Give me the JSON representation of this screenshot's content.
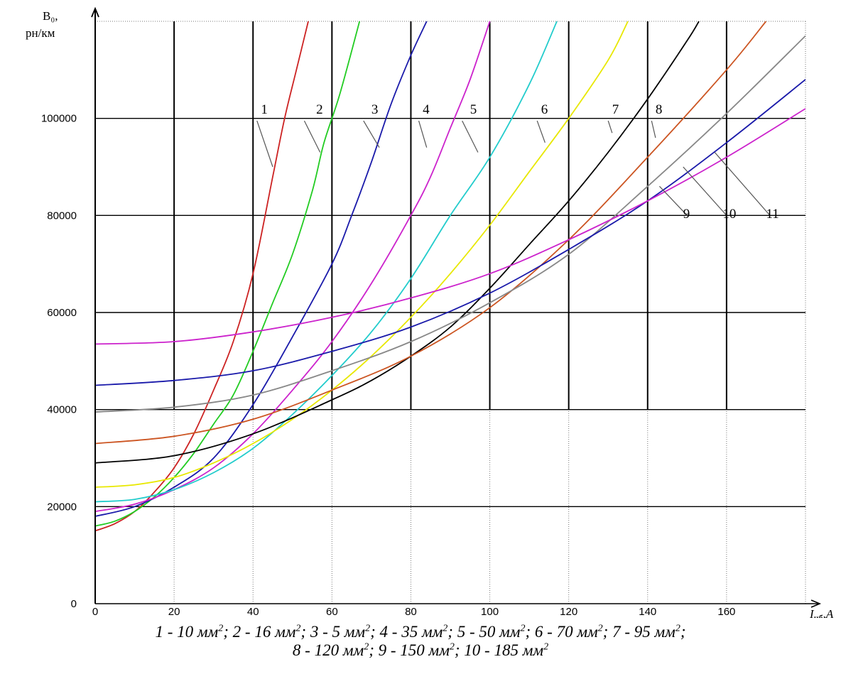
{
  "chart_data": {
    "type": "line",
    "title": "",
    "ylabel_lines": [
      "B₀,",
      "рн/км"
    ],
    "xlabel_main": "I",
    "xlabel_sub": "нб",
    "xlabel_unit": ",A",
    "xlim": [
      0,
      180
    ],
    "ylim": [
      0,
      120000
    ],
    "x_ticks": [
      0,
      20,
      40,
      60,
      80,
      100,
      120,
      140,
      160
    ],
    "y_ticks": [
      0,
      20000,
      40000,
      60000,
      80000,
      100000
    ],
    "grid": "on",
    "series": [
      {
        "label": "1",
        "color": "#cc2222",
        "points": [
          [
            0,
            15000
          ],
          [
            5,
            16500
          ],
          [
            10,
            19000
          ],
          [
            15,
            23000
          ],
          [
            20,
            28000
          ],
          [
            25,
            35000
          ],
          [
            30,
            44000
          ],
          [
            35,
            54000
          ],
          [
            40,
            68000
          ],
          [
            45,
            88000
          ],
          [
            48,
            100000
          ],
          [
            51,
            110000
          ],
          [
            54,
            120000
          ]
        ]
      },
      {
        "label": "2",
        "color": "#22cc22",
        "points": [
          [
            0,
            16000
          ],
          [
            5,
            17000
          ],
          [
            10,
            19000
          ],
          [
            15,
            22000
          ],
          [
            20,
            26000
          ],
          [
            25,
            31000
          ],
          [
            30,
            37000
          ],
          [
            35,
            43000
          ],
          [
            40,
            52000
          ],
          [
            45,
            62000
          ],
          [
            50,
            72000
          ],
          [
            55,
            85000
          ],
          [
            58,
            95000
          ],
          [
            62,
            105000
          ],
          [
            67,
            120000
          ]
        ]
      },
      {
        "label": "3",
        "color": "#1a1aaa",
        "points": [
          [
            0,
            18000
          ],
          [
            10,
            20000
          ],
          [
            20,
            24000
          ],
          [
            30,
            30000
          ],
          [
            40,
            41000
          ],
          [
            50,
            55000
          ],
          [
            60,
            70000
          ],
          [
            65,
            80000
          ],
          [
            70,
            91000
          ],
          [
            75,
            103000
          ],
          [
            80,
            113000
          ],
          [
            84,
            120000
          ]
        ]
      },
      {
        "label": "4",
        "color": "#cc22cc",
        "points": [
          [
            0,
            19000
          ],
          [
            10,
            20500
          ],
          [
            20,
            23500
          ],
          [
            30,
            28000
          ],
          [
            40,
            35000
          ],
          [
            50,
            44000
          ],
          [
            60,
            54000
          ],
          [
            70,
            66000
          ],
          [
            80,
            80000
          ],
          [
            85,
            88000
          ],
          [
            90,
            98000
          ],
          [
            95,
            108000
          ],
          [
            100,
            120000
          ]
        ]
      },
      {
        "label": "5",
        "color": "#22cccc",
        "points": [
          [
            0,
            21000
          ],
          [
            10,
            21500
          ],
          [
            20,
            23500
          ],
          [
            30,
            27000
          ],
          [
            40,
            32000
          ],
          [
            50,
            39000
          ],
          [
            60,
            47000
          ],
          [
            70,
            56000
          ],
          [
            80,
            67000
          ],
          [
            90,
            80000
          ],
          [
            100,
            92000
          ],
          [
            110,
            107000
          ],
          [
            117,
            120000
          ]
        ]
      },
      {
        "label": "6",
        "color": "#e8e800",
        "points": [
          [
            0,
            24000
          ],
          [
            10,
            24500
          ],
          [
            20,
            26000
          ],
          [
            30,
            29000
          ],
          [
            40,
            33000
          ],
          [
            50,
            38000
          ],
          [
            60,
            44000
          ],
          [
            70,
            51000
          ],
          [
            80,
            59000
          ],
          [
            90,
            68000
          ],
          [
            100,
            78000
          ],
          [
            110,
            89000
          ],
          [
            120,
            100000
          ],
          [
            130,
            112000
          ],
          [
            135,
            120000
          ]
        ]
      },
      {
        "label": "7",
        "color": "#000000",
        "points": [
          [
            0,
            29000
          ],
          [
            20,
            30500
          ],
          [
            40,
            35000
          ],
          [
            60,
            42000
          ],
          [
            70,
            46000
          ],
          [
            80,
            51000
          ],
          [
            90,
            57000
          ],
          [
            100,
            65000
          ],
          [
            110,
            74000
          ],
          [
            120,
            83000
          ],
          [
            130,
            93000
          ],
          [
            140,
            104000
          ],
          [
            150,
            116000
          ],
          [
            153,
            120000
          ]
        ]
      },
      {
        "label": "8",
        "color": "#cc5522",
        "points": [
          [
            0,
            33000
          ],
          [
            20,
            34500
          ],
          [
            40,
            38000
          ],
          [
            60,
            44000
          ],
          [
            80,
            51000
          ],
          [
            100,
            61000
          ],
          [
            120,
            75000
          ],
          [
            140,
            92000
          ],
          [
            160,
            110000
          ],
          [
            170,
            120000
          ]
        ]
      },
      {
        "label": "9",
        "color": "#888888",
        "points": [
          [
            0,
            39500
          ],
          [
            20,
            40500
          ],
          [
            40,
            43000
          ],
          [
            60,
            48000
          ],
          [
            80,
            54000
          ],
          [
            100,
            62000
          ],
          [
            120,
            72000
          ],
          [
            140,
            86000
          ],
          [
            160,
            101000
          ],
          [
            180,
            117000
          ]
        ]
      },
      {
        "label": "10",
        "color": "#1a1aaa",
        "points": [
          [
            0,
            45000
          ],
          [
            20,
            46000
          ],
          [
            40,
            48000
          ],
          [
            60,
            52000
          ],
          [
            80,
            57000
          ],
          [
            100,
            64000
          ],
          [
            120,
            73000
          ],
          [
            140,
            83000
          ],
          [
            160,
            95000
          ],
          [
            180,
            108000
          ]
        ]
      },
      {
        "label": "11",
        "color": "#cc22cc",
        "points": [
          [
            0,
            53500
          ],
          [
            20,
            54000
          ],
          [
            40,
            56000
          ],
          [
            60,
            59000
          ],
          [
            80,
            63000
          ],
          [
            100,
            68000
          ],
          [
            120,
            75000
          ],
          [
            140,
            83000
          ],
          [
            160,
            92000
          ],
          [
            180,
            102000
          ]
        ]
      }
    ],
    "curve_labels": [
      {
        "text": "1",
        "x": 42,
        "y": 101000,
        "lx": 41,
        "ly": 99500,
        "tx": 45,
        "ty": 90000
      },
      {
        "text": "2",
        "x": 56,
        "y": 101000,
        "lx": 53,
        "ly": 99500,
        "tx": 57,
        "ty": 93000
      },
      {
        "text": "3",
        "x": 70,
        "y": 101000,
        "lx": 68,
        "ly": 99500,
        "tx": 72,
        "ty": 94000
      },
      {
        "text": "4",
        "x": 83,
        "y": 101000,
        "lx": 82,
        "ly": 99500,
        "tx": 84,
        "ty": 94000
      },
      {
        "text": "5",
        "x": 95,
        "y": 101000,
        "lx": 93,
        "ly": 99500,
        "tx": 97,
        "ty": 93000
      },
      {
        "text": "6",
        "x": 113,
        "y": 101000,
        "lx": 112,
        "ly": 99500,
        "tx": 114,
        "ty": 95000
      },
      {
        "text": "7",
        "x": 131,
        "y": 101000,
        "lx": 130,
        "ly": 99500,
        "tx": 131,
        "ty": 97000
      },
      {
        "text": "8",
        "x": 142,
        "y": 101000,
        "lx": 141,
        "ly": 99500,
        "tx": 142,
        "ty": 96000
      },
      {
        "text": "9",
        "x": 149,
        "y": 79500,
        "lx": 150,
        "ly": 80000,
        "tx": 143,
        "ty": 86000
      },
      {
        "text": "10",
        "x": 159,
        "y": 79500,
        "lx": 160,
        "ly": 80000,
        "tx": 149,
        "ty": 90000
      },
      {
        "text": "11",
        "x": 170,
        "y": 79500,
        "lx": 171,
        "ly": 80000,
        "tx": 157,
        "ty": 93000
      }
    ],
    "caption_items_line1": [
      {
        "num": "1",
        "val": "10"
      },
      {
        "num": "2",
        "val": "16"
      },
      {
        "num": "3",
        "val": "5"
      },
      {
        "num": "4",
        "val": "35"
      },
      {
        "num": "5",
        "val": "50"
      },
      {
        "num": "6",
        "val": "70"
      },
      {
        "num": "7",
        "val": "95"
      }
    ],
    "caption_items_line2": [
      {
        "num": "8",
        "val": "120"
      },
      {
        "num": "9",
        "val": "150"
      },
      {
        "num": "10",
        "val": "185"
      }
    ],
    "caption_unit": "мм"
  }
}
